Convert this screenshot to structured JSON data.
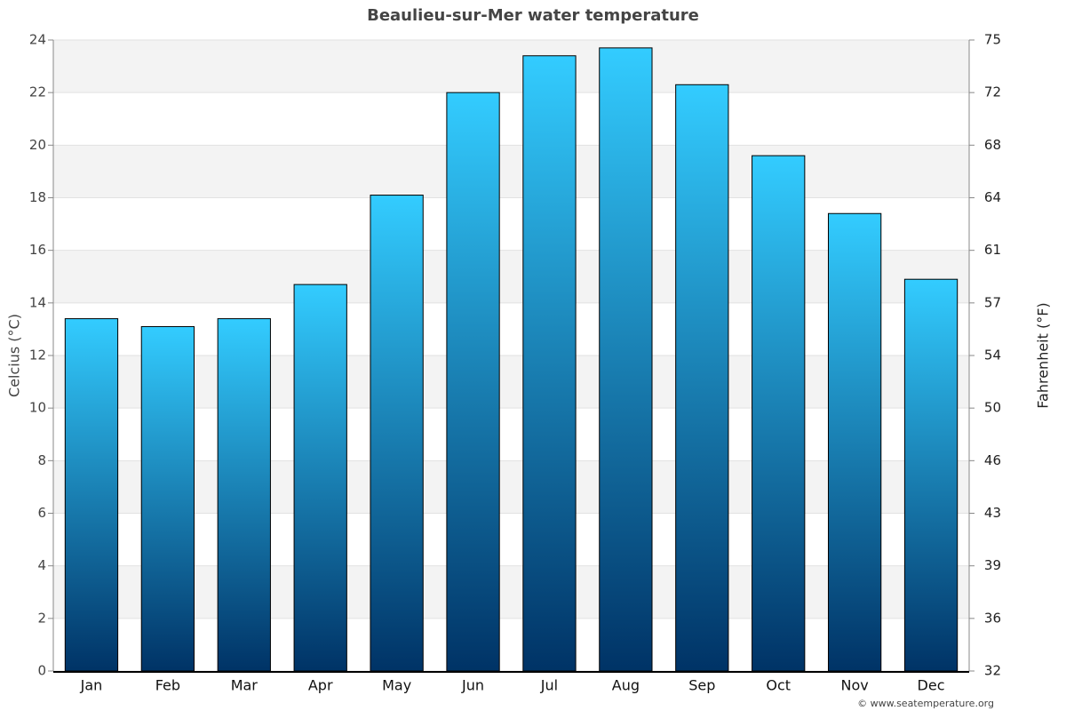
{
  "chart_data": {
    "type": "bar",
    "title": "Beaulieu-sur-Mer water temperature",
    "y_label": "Celcius (°C)",
    "y2_label": "Fahrenheit (°F)",
    "credit": "© www.seatemperature.org",
    "categories": [
      "Jan",
      "Feb",
      "Mar",
      "Apr",
      "May",
      "Jun",
      "Jul",
      "Aug",
      "Sep",
      "Oct",
      "Nov",
      "Dec"
    ],
    "values": [
      13.4,
      13.1,
      13.4,
      14.7,
      18.1,
      22.0,
      23.4,
      23.7,
      22.3,
      19.6,
      17.4,
      14.9
    ],
    "color_top": "#33ccff",
    "color_bottom": "#003366",
    "ylim": [
      0,
      24
    ],
    "yticks": [
      0,
      2,
      4,
      6,
      8,
      10,
      12,
      14,
      16,
      18,
      20,
      22,
      24
    ],
    "y2lim": [
      32,
      75.2
    ],
    "y2ticks": [
      32,
      {
        "value": 35.6,
        "label": "36"
      },
      {
        "value": 39.2,
        "label": "39"
      },
      {
        "value": 42.8,
        "label": "43"
      },
      {
        "value": 46.4,
        "label": "46"
      },
      50,
      {
        "value": 53.6,
        "label": "54"
      },
      {
        "value": 57.2,
        "label": "57"
      },
      {
        "value": 60.8,
        "label": "61"
      },
      {
        "value": 64.4,
        "label": "64"
      },
      68,
      {
        "value": 71.6,
        "label": "72"
      },
      {
        "value": 75.2,
        "label": "75"
      }
    ],
    "grid": true
  }
}
